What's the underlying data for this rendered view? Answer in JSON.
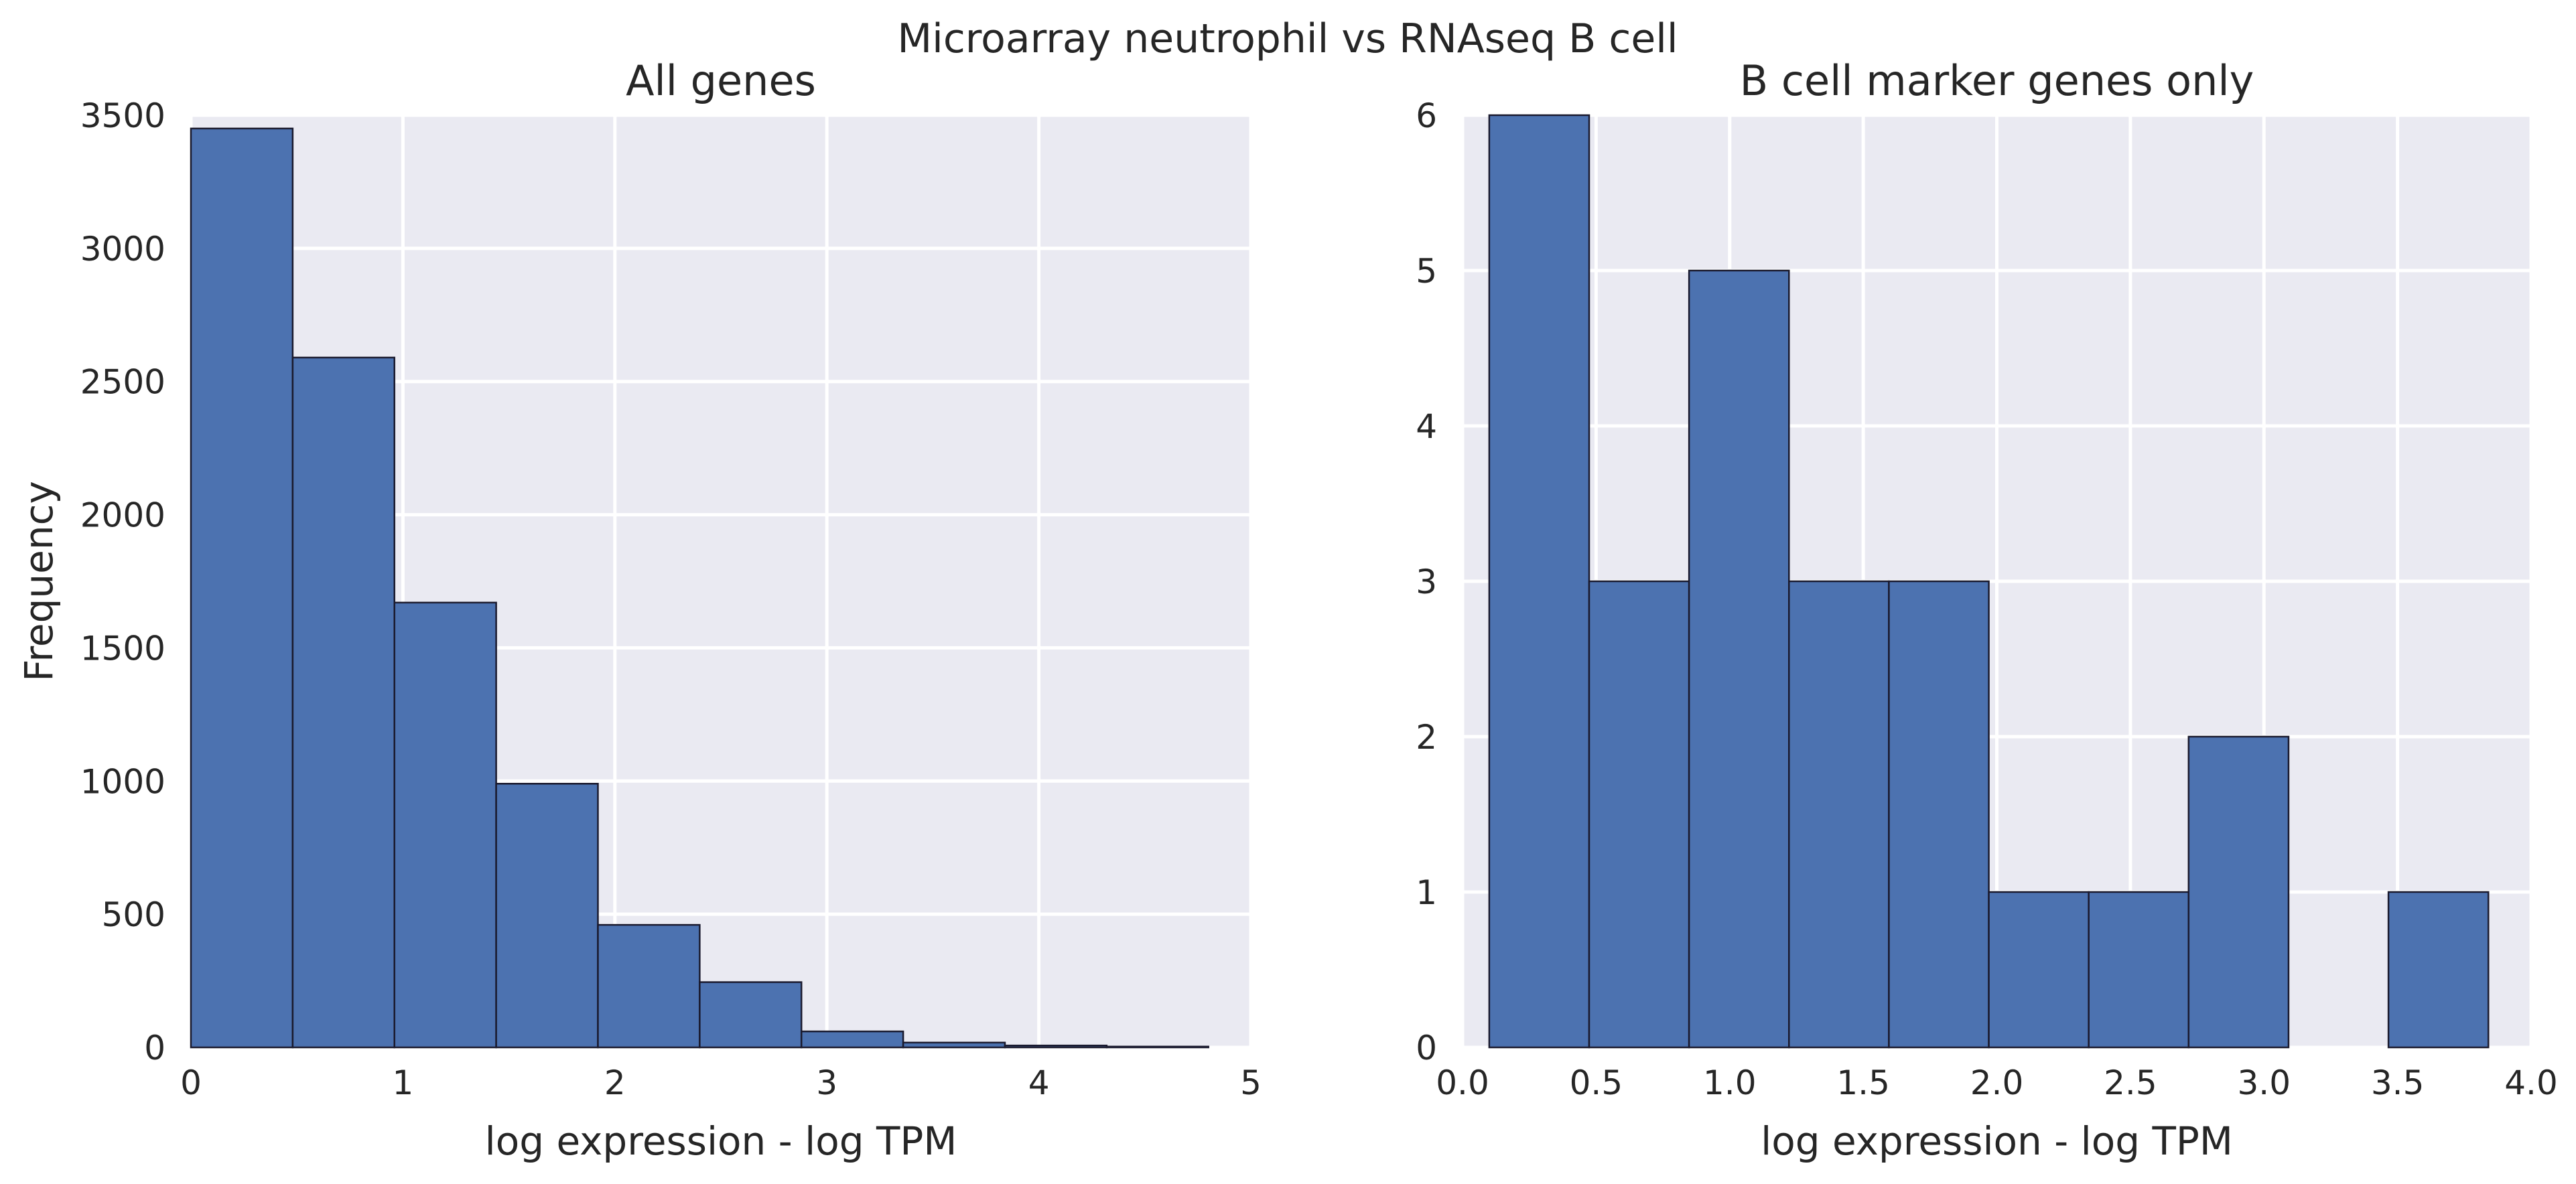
{
  "figure": {
    "suptitle": "Microarray neutrophil vs RNAseq B cell",
    "colors": {
      "bar": "#4c72b0",
      "bar_edge": "#1a1a2e",
      "plot_background": "#eaeaf2",
      "grid": "#ffffff"
    }
  },
  "chart_data": [
    {
      "type": "bar",
      "subtype": "histogram",
      "title": "All genes",
      "xlabel": "log expression - log TPM",
      "ylabel": "Frequency",
      "xlim": [
        0,
        5
      ],
      "ylim": [
        0,
        3500
      ],
      "xticks": [
        0,
        1,
        2,
        3,
        4,
        5
      ],
      "xtick_labels": [
        "0",
        "1",
        "2",
        "3",
        "4",
        "5"
      ],
      "yticks": [
        0,
        500,
        1000,
        1500,
        2000,
        2500,
        3000,
        3500
      ],
      "ytick_labels": [
        "0",
        "500",
        "1000",
        "1500",
        "2000",
        "2500",
        "3000",
        "3500"
      ],
      "bin_edges": [
        0.0,
        0.48,
        0.96,
        1.44,
        1.92,
        2.4,
        2.88,
        3.36,
        3.84,
        4.32,
        4.8
      ],
      "values": [
        3450,
        2590,
        1670,
        990,
        460,
        245,
        60,
        18,
        7,
        3
      ],
      "grid": true,
      "legend": null
    },
    {
      "type": "bar",
      "subtype": "histogram",
      "title": "B cell marker genes only",
      "xlabel": "log expression - log TPM",
      "ylabel": "",
      "xlim": [
        0.0,
        4.0
      ],
      "ylim": [
        0,
        6
      ],
      "xticks": [
        0.0,
        0.5,
        1.0,
        1.5,
        2.0,
        2.5,
        3.0,
        3.5,
        4.0
      ],
      "xtick_labels": [
        "0.0",
        "0.5",
        "1.0",
        "1.5",
        "2.0",
        "2.5",
        "3.0",
        "3.5",
        "4.0"
      ],
      "yticks": [
        0,
        1,
        2,
        3,
        4,
        5,
        6
      ],
      "ytick_labels": [
        "0",
        "1",
        "2",
        "3",
        "4",
        "5",
        "6"
      ],
      "bin_edges": [
        0.1,
        0.474,
        0.848,
        1.222,
        1.596,
        1.97,
        2.344,
        2.718,
        3.092,
        3.466,
        3.84
      ],
      "values": [
        6,
        3,
        5,
        3,
        3,
        1,
        1,
        2,
        0,
        1
      ],
      "grid": true,
      "legend": null
    }
  ]
}
